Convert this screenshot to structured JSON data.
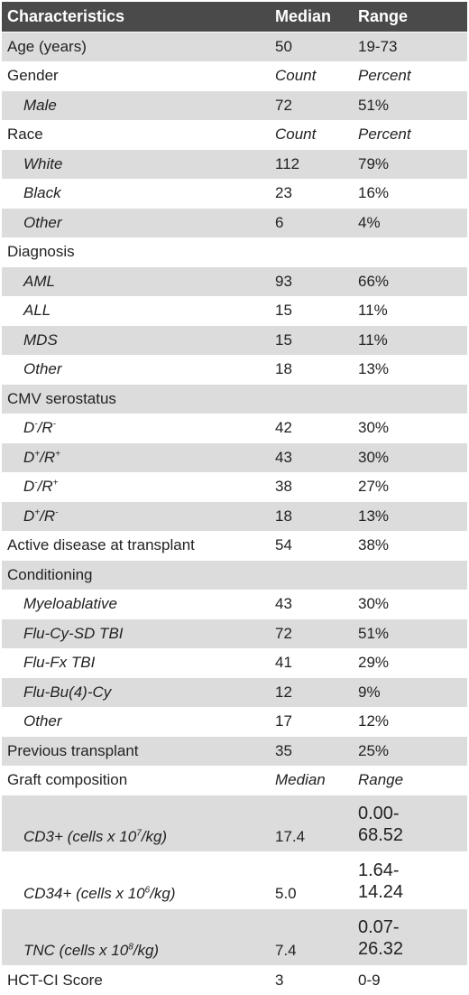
{
  "header": {
    "characteristics": "Characteristics",
    "median": "Median",
    "range": "Range"
  },
  "rows": [
    {
      "label": "Age (years)",
      "median": "50",
      "range": "19-73",
      "shade": true
    },
    {
      "label": "Gender",
      "median": "Count",
      "range": "Percent",
      "italic_values": true
    },
    {
      "label": "Male",
      "median": "72",
      "range": "51%",
      "sub": true,
      "shade": true
    },
    {
      "label": "Race",
      "median": "Count",
      "range": "Percent",
      "italic_values": true
    },
    {
      "label": "White",
      "median": "112",
      "range": "79%",
      "sub": true,
      "shade": true
    },
    {
      "label": "Black",
      "median": "23",
      "range": "16%",
      "sub": true
    },
    {
      "label": "Other",
      "median": "6",
      "range": "4%",
      "sub": true,
      "shade": true
    },
    {
      "label": "Diagnosis",
      "median": "",
      "range": ""
    },
    {
      "label": "AML",
      "median": "93",
      "range": "66%",
      "sub": true,
      "shade": true
    },
    {
      "label": "ALL",
      "median": "15",
      "range": "11%",
      "sub": true
    },
    {
      "label": "MDS",
      "median": "15",
      "range": "11%",
      "sub": true,
      "shade": true
    },
    {
      "label": "Other",
      "median": "18",
      "range": "13%",
      "sub": true
    },
    {
      "label": "CMV serostatus",
      "median": "",
      "range": "",
      "shade": true
    },
    {
      "label": "D",
      "label_sup1": "-",
      "label_mid": "/R",
      "label_sup2": "-",
      "median": "42",
      "range": "30%",
      "sub": true
    },
    {
      "label": "D",
      "label_sup1": "+",
      "label_mid": "/R",
      "label_sup2": "+",
      "median": "43",
      "range": "30%",
      "sub": true,
      "shade": true
    },
    {
      "label": "D",
      "label_sup1": "-",
      "label_mid": "/R",
      "label_sup2": "+",
      "median": "38",
      "range": "27%",
      "sub": true
    },
    {
      "label": "D",
      "label_sup1": "+",
      "label_mid": "/R",
      "label_sup2": "-",
      "median": "18",
      "range": "13%",
      "sub": true,
      "shade": true
    },
    {
      "label": "Active disease at transplant",
      "median": "54",
      "range": "38%"
    },
    {
      "label": "Conditioning",
      "median": "",
      "range": "",
      "shade": true
    },
    {
      "label": "Myeloablative",
      "median": "43",
      "range": "30%",
      "sub": true
    },
    {
      "label": "Flu-Cy-SD TBI",
      "median": "72",
      "range": "51%",
      "sub": true,
      "shade": true
    },
    {
      "label": "Flu-Fx TBI",
      "median": "41",
      "range": "29%",
      "sub": true
    },
    {
      "label": "Flu-Bu(4)-Cy",
      "median": "12",
      "range": "9%",
      "sub": true,
      "shade": true
    },
    {
      "label": "Other",
      "median": "17",
      "range": "12%",
      "sub": true
    },
    {
      "label": "Previous transplant",
      "median": "35",
      "range": "25%",
      "shade": true
    },
    {
      "label": "Graft composition",
      "median": "Median",
      "range": "Range",
      "italic_values": true
    },
    {
      "label": "CD3+ (cells x 10",
      "label_sup1": "7",
      "label_mid": "/kg)",
      "median": "17.4",
      "range": "0.00-",
      "range2": "68.52",
      "sub": true,
      "shade": true,
      "tall": true
    },
    {
      "label": "CD34+ (cells x 10",
      "label_sup1": "6",
      "label_mid": "/kg)",
      "median": "5.0",
      "range": "1.64-",
      "range2": "14.24",
      "sub": true,
      "tall": true
    },
    {
      "label": "TNC (cells x 10",
      "label_sup1": "8",
      "label_mid": "/kg)",
      "median": "7.4",
      "range": "0.07-",
      "range2": "26.32",
      "sub": true,
      "shade": true,
      "tall": true
    },
    {
      "label": "HCT-CI Score",
      "median": "3",
      "range": "0-9"
    }
  ]
}
